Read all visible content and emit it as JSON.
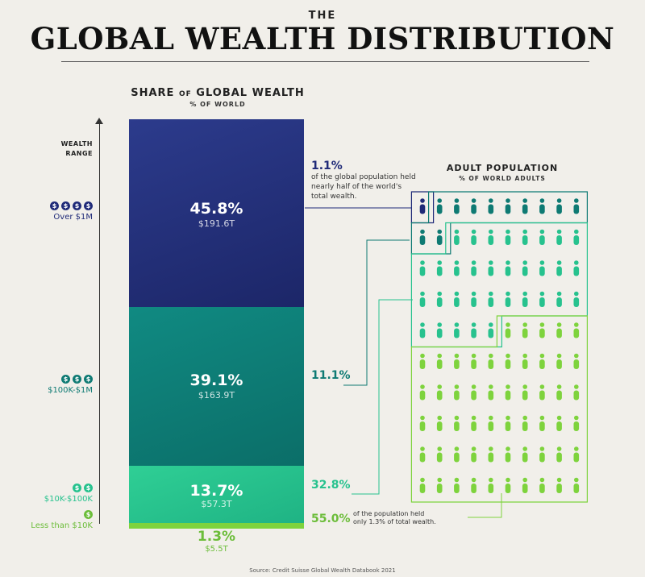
{
  "header": {
    "the": "THE",
    "title": "GLOBAL WEALTH DISTRIBUTION"
  },
  "share": {
    "title_a": "SHARE",
    "title_of": "OF",
    "title_b": "GLOBAL WEALTH",
    "subtitle": "% OF WORLD"
  },
  "axis": {
    "wealth_range_line1": "WEALTH",
    "wealth_range_line2": "RANGE"
  },
  "tiers": [
    {
      "coins": 4,
      "label": "Over $1M",
      "color": "#1f2a78"
    },
    {
      "coins": 3,
      "label": "$100K-$1M",
      "color": "#0e7a73"
    },
    {
      "coins": 2,
      "label": "$10K-$100K",
      "color": "#27c28e"
    },
    {
      "coins": 1,
      "label": "Less than $10K",
      "color": "#6cbd3a"
    }
  ],
  "chart_data": {
    "type": "bar",
    "title": "SHARE OF GLOBAL WEALTH",
    "subtitle": "% OF WORLD",
    "categories": [
      "Over $1M",
      "$100K-$1M",
      "$10K-$100K",
      "Less than $10K"
    ],
    "series": [
      {
        "name": "SHARE OF GLOBAL WEALTH",
        "values": [
          45.8,
          39.1,
          13.7,
          1.3
        ],
        "labels": [
          "45.8%",
          "39.1%",
          "13.7%",
          "1.3%"
        ],
        "amounts": [
          "$191.6T",
          "$163.9T",
          "$57.3T",
          "$5.5T"
        ]
      },
      {
        "name": "ADULT POPULATION",
        "values": [
          1.1,
          11.1,
          32.8,
          55.0
        ],
        "labels": [
          "1.1%",
          "11.1%",
          "32.8%",
          "55.0%"
        ]
      }
    ],
    "colors": [
      "#1f2a78",
      "#0e7a73",
      "#27c28e",
      "#7ed33d"
    ]
  },
  "annotations": {
    "top_note": "of the global population held nearly half of the world's total wealth.",
    "bottom_note_a": "of the population held",
    "bottom_note_b": "only 1.3% of total wealth."
  },
  "adult": {
    "title": "ADULT POPULATION",
    "subtitle": "% OF WORLD ADULTS"
  },
  "people_counts": [
    1,
    11,
    33,
    55
  ],
  "people_colors": [
    "#1f2a78",
    "#0e7a73",
    "#27c28e",
    "#7ed33d"
  ],
  "source": "Source: Credit Suisse Global Wealth Databook 2021"
}
